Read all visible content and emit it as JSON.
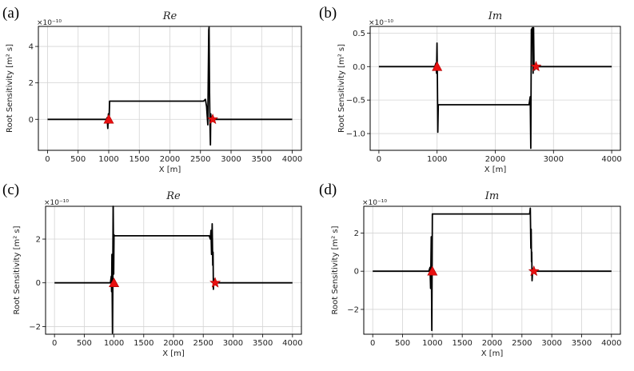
{
  "chart_data": [
    {
      "type": "line",
      "panel_label": "(a)",
      "title": "Re",
      "xlabel": "X [m]",
      "ylabel": "Root Sensitivity [m² s]",
      "scale_exponent": "×10⁻¹⁰",
      "xlim": [
        -150,
        4150
      ],
      "ylim": [
        -1.7,
        5.1
      ],
      "xticks": [
        0,
        500,
        1000,
        1500,
        2000,
        2500,
        3000,
        3500,
        4000
      ],
      "yticks": [
        0,
        2,
        4
      ],
      "ytick_labels": [
        "0",
        "2",
        "4"
      ],
      "series": [
        {
          "name": "sensitivity",
          "x": [
            0,
            960,
            975,
            985,
            995,
            1005,
            1015,
            1025,
            2550,
            2580,
            2600,
            2620,
            2635,
            2640,
            2648,
            2655,
            2662,
            2668,
            2675,
            2690,
            4000
          ],
          "y": [
            0,
            0,
            0.1,
            -0.5,
            0.3,
            -0.2,
            1.0,
            1.0,
            1.0,
            1.1,
            0.7,
            -0.3,
            4.9,
            5.05,
            1.5,
            -0.2,
            -1.4,
            0.3,
            0,
            0,
            0
          ]
        }
      ],
      "markers": [
        {
          "type": "triangle",
          "x": 1000,
          "y": 0
        },
        {
          "type": "star",
          "x": 2700,
          "y": 0
        }
      ]
    },
    {
      "type": "line",
      "panel_label": "(b)",
      "title": "Im",
      "xlabel": "X [m]",
      "ylabel": "Root Sensitivity [m² s]",
      "scale_exponent": "×10⁻¹⁰",
      "xlim": [
        -150,
        4150
      ],
      "ylim": [
        -1.25,
        0.6
      ],
      "xticks": [
        0,
        1000,
        2000,
        3000,
        4000
      ],
      "yticks": [
        0.5,
        0.0,
        -0.5,
        -1.0
      ],
      "ytick_labels": [
        "0.5",
        "0.0",
        "−0.5",
        "−1.0"
      ],
      "series": [
        {
          "name": "sensitivity",
          "x": [
            0,
            960,
            980,
            990,
            998,
            1005,
            1012,
            1020,
            2550,
            2580,
            2600,
            2610,
            2620,
            2640,
            2650,
            2658,
            2665,
            2675,
            2690,
            4000
          ],
          "y": [
            0,
            0,
            0.05,
            -0.1,
            0.35,
            -0.2,
            -0.98,
            -0.57,
            -0.57,
            -0.57,
            -0.45,
            -1.22,
            0.55,
            0.58,
            -0.1,
            0.58,
            0.05,
            -0.05,
            0,
            0
          ]
        }
      ],
      "markers": [
        {
          "type": "triangle",
          "x": 1000,
          "y": 0
        },
        {
          "type": "star",
          "x": 2700,
          "y": 0
        }
      ]
    },
    {
      "type": "line",
      "panel_label": "(c)",
      "title": "Re",
      "xlabel": "X [m]",
      "ylabel": "Root Sensitivity [m² s]",
      "scale_exponent": "×10⁻¹⁰",
      "xlim": [
        -150,
        4150
      ],
      "ylim": [
        -2.35,
        3.5
      ],
      "xticks": [
        0,
        500,
        1000,
        1500,
        2000,
        2500,
        3000,
        3500,
        4000
      ],
      "yticks": [
        -2,
        0,
        2
      ],
      "ytick_labels": [
        "−2",
        "0",
        "2"
      ],
      "series": [
        {
          "name": "sensitivity",
          "x": [
            0,
            940,
            955,
            960,
            965,
            975,
            985,
            995,
            1000,
            1005,
            1015,
            1025,
            2600,
            2620,
            2630,
            2640,
            2650,
            2660,
            2665,
            2670,
            2675,
            2680,
            2690,
            4000
          ],
          "y": [
            0,
            0,
            0.3,
            -0.4,
            1.3,
            -2.3,
            3.5,
            0.4,
            2.2,
            2.15,
            2.15,
            2.15,
            2.15,
            2.0,
            2.4,
            1.3,
            2.7,
            0.8,
            1.4,
            -0.3,
            0.2,
            0,
            0,
            0
          ]
        }
      ],
      "markers": [
        {
          "type": "triangle",
          "x": 1000,
          "y": 0
        },
        {
          "type": "star",
          "x": 2700,
          "y": 0
        }
      ]
    },
    {
      "type": "line",
      "panel_label": "(d)",
      "title": "Im",
      "xlabel": "X [m]",
      "ylabel": "Root Sensitivity [m² s]",
      "scale_exponent": "×10⁻¹⁰",
      "xlim": [
        -150,
        4150
      ],
      "ylim": [
        -3.3,
        3.4
      ],
      "xticks": [
        0,
        500,
        1000,
        1500,
        2000,
        2500,
        3000,
        3500,
        4000
      ],
      "yticks": [
        -2,
        0,
        2
      ],
      "ytick_labels": [
        "−2",
        "0",
        "2"
      ],
      "series": [
        {
          "name": "sensitivity",
          "x": [
            0,
            940,
            960,
            970,
            980,
            990,
            1000,
            1010,
            1020,
            2600,
            2630,
            2640,
            2650,
            2655,
            2660,
            2665,
            2670,
            2680,
            2690,
            4000
          ],
          "y": [
            0,
            0,
            0.2,
            -0.9,
            1.8,
            -3.1,
            3.0,
            3.0,
            3.0,
            3.0,
            3.0,
            3.3,
            1.2,
            2.2,
            0.5,
            1.0,
            -0.5,
            0.1,
            0,
            0
          ]
        }
      ],
      "markers": [
        {
          "type": "triangle",
          "x": 1000,
          "y": 0
        },
        {
          "type": "star",
          "x": 2700,
          "y": 0
        }
      ]
    }
  ]
}
